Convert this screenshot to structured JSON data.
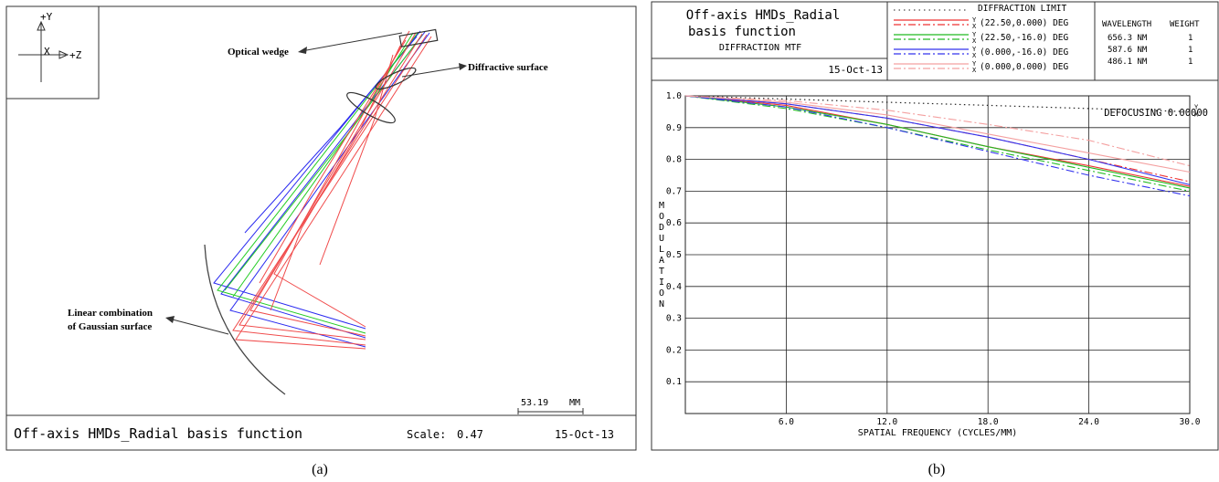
{
  "panel_a": {
    "caption": "(a)",
    "axis_labels": {
      "y": "+Y",
      "x": "X",
      "z": "+Z"
    },
    "annotations": {
      "optical_wedge": "Optical wedge",
      "diffractive_surface": "Diffractive surface",
      "gaussian_line1": "Linear combination",
      "gaussian_line2": "of Gaussian surface"
    },
    "scale_bar": {
      "value": "53.19",
      "unit": "MM"
    },
    "footer": {
      "title": "Off-axis HMDs_Radial basis function",
      "scale_label": "Scale:",
      "scale_value": "0.47",
      "date": "15-Oct-13"
    },
    "colors": {
      "blue": "#2a2af0",
      "green": "#22cc22",
      "red": "#f04a4a",
      "lens": "#333333"
    }
  },
  "panel_b": {
    "caption": "(b)",
    "title_line1": "Off-axis HMDs_Radial",
    "title_line2": "basis function",
    "subtitle": "DIFFRACTION MTF",
    "date": "15-Oct-13",
    "legend_header": "DIFFRACTION LIMIT",
    "legend": [
      {
        "label": "(22.50,0.000) DEG",
        "color": "#ee3333"
      },
      {
        "label": "(22.50,-16.0) DEG",
        "color": "#22bb22"
      },
      {
        "label": "(0.000,-16.0) DEG",
        "color": "#3333ee"
      },
      {
        "label": "(0.000,0.000) DEG",
        "color": "#f4a0a0"
      }
    ],
    "legend_yx": {
      "y": "Y",
      "x": "X"
    },
    "wavelength_header": "WAVELENGTH",
    "weight_header": "WEIGHT",
    "wavelengths": [
      {
        "wl": "656.3 NM",
        "weight": "1"
      },
      {
        "wl": "587.6 NM",
        "weight": "1"
      },
      {
        "wl": "486.1 NM",
        "weight": "1"
      }
    ],
    "defocusing": "DEFOCUSING 0.00000"
  },
  "chart_data": {
    "type": "line",
    "title": "DIFFRACTION MTF",
    "xlabel": "SPATIAL FREQUENCY (CYCLES/MM)",
    "ylabel": "MODULATION",
    "xlim": [
      0,
      30
    ],
    "ylim": [
      0,
      1
    ],
    "x_ticks": [
      "6.0",
      "12.0",
      "18.0",
      "24.0",
      "30.0"
    ],
    "y_ticks": [
      "0.1",
      "0.2",
      "0.3",
      "0.4",
      "0.5",
      "0.6",
      "0.7",
      "0.8",
      "0.9",
      "1.0"
    ],
    "grid": true,
    "x": [
      0,
      6,
      12,
      18,
      24,
      30
    ],
    "series": [
      {
        "name": "DIFFRACTION LIMIT",
        "color": "#222222",
        "dash": "dot",
        "values": [
          1.0,
          0.99,
          0.98,
          0.97,
          0.96,
          0.95
        ]
      },
      {
        "name": "(22.50,0.000) DEG",
        "axis": "Y",
        "color": "#ee3333",
        "dash": "solid",
        "values": [
          1.0,
          0.97,
          0.91,
          0.84,
          0.78,
          0.715
        ]
      },
      {
        "name": "(22.50,0.000) DEG",
        "axis": "X",
        "color": "#ee3333",
        "dash": "dashdot",
        "values": [
          1.0,
          0.975,
          0.93,
          0.87,
          0.8,
          0.73
        ]
      },
      {
        "name": "(22.50,-16.0) DEG",
        "axis": "Y",
        "color": "#22bb22",
        "dash": "solid",
        "values": [
          1.0,
          0.965,
          0.91,
          0.84,
          0.775,
          0.71
        ]
      },
      {
        "name": "(22.50,-16.0) DEG",
        "axis": "X",
        "color": "#22bb22",
        "dash": "dashdot",
        "values": [
          1.0,
          0.96,
          0.9,
          0.83,
          0.765,
          0.7
        ]
      },
      {
        "name": "(0.000,-16.0) DEG",
        "axis": "Y",
        "color": "#3333ee",
        "dash": "solid",
        "values": [
          1.0,
          0.975,
          0.93,
          0.87,
          0.8,
          0.72
        ]
      },
      {
        "name": "(0.000,-16.0) DEG",
        "axis": "X",
        "color": "#3333ee",
        "dash": "dashdot",
        "values": [
          1.0,
          0.965,
          0.9,
          0.825,
          0.75,
          0.685
        ]
      },
      {
        "name": "(0.000,0.000) DEG",
        "axis": "Y",
        "color": "#f4a0a0",
        "dash": "solid",
        "values": [
          1.0,
          0.98,
          0.94,
          0.88,
          0.82,
          0.76
        ]
      },
      {
        "name": "(0.000,0.000) DEG",
        "axis": "X",
        "color": "#f4a0a0",
        "dash": "dashdot",
        "values": [
          1.0,
          0.985,
          0.955,
          0.91,
          0.86,
          0.78
        ]
      }
    ]
  }
}
